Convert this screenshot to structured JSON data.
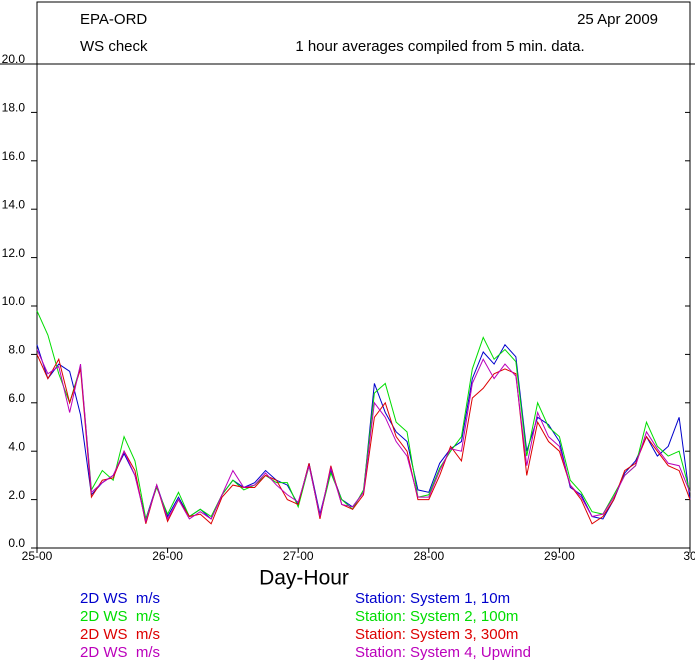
{
  "header": {
    "org": "EPA-ORD",
    "date": "25 Apr 2009"
  },
  "chart_data": {
    "type": "line",
    "title": "WS check",
    "subtitle": "1 hour averages compiled from 5 min. data.",
    "x_label": "Day-Hour",
    "x": [
      0,
      2,
      4,
      6,
      8,
      10,
      12,
      14,
      16,
      18,
      20,
      22,
      24,
      26,
      28,
      30,
      32,
      34,
      36,
      38,
      40,
      42,
      44,
      46,
      48,
      50,
      52,
      54,
      56,
      58,
      60,
      62,
      64,
      66,
      68,
      70,
      72,
      74,
      76,
      78,
      80,
      82,
      84,
      86,
      88,
      90,
      92,
      94,
      96,
      98,
      100,
      102,
      104,
      106,
      108,
      110,
      112,
      114,
      116,
      118,
      120
    ],
    "xlim": [
      0,
      120
    ],
    "xticks": [
      {
        "value": 0,
        "label": "25-00"
      },
      {
        "value": 24,
        "label": "26-00"
      },
      {
        "value": 48,
        "label": "27-00"
      },
      {
        "value": 72,
        "label": "28-00"
      },
      {
        "value": 96,
        "label": "29-00"
      },
      {
        "value": 120,
        "label": "30"
      }
    ],
    "ylim": [
      0,
      20
    ],
    "yticks": [
      {
        "value": 0,
        "label": "0.0"
      },
      {
        "value": 2,
        "label": "2.0"
      },
      {
        "value": 4,
        "label": "4.0"
      },
      {
        "value": 6,
        "label": "6.0"
      },
      {
        "value": 8,
        "label": "8.0"
      },
      {
        "value": 10,
        "label": "10.0"
      },
      {
        "value": 12,
        "label": "12.0"
      },
      {
        "value": 14,
        "label": "14.0"
      },
      {
        "value": 16,
        "label": "16.0"
      },
      {
        "value": 18,
        "label": "18.0"
      },
      {
        "value": 20,
        "label": "20.0"
      }
    ],
    "series": [
      {
        "name": "Station: System 1, 10m",
        "label": "2D WS  m/s",
        "color": "#0000cc",
        "values": [
          8.4,
          7.0,
          7.6,
          7.3,
          5.5,
          2.2,
          2.7,
          3.0,
          3.9,
          3.0,
          1.2,
          2.6,
          1.3,
          2.1,
          1.3,
          1.6,
          1.2,
          2.2,
          2.8,
          2.5,
          2.7,
          3.2,
          2.8,
          2.6,
          1.8,
          3.5,
          1.4,
          3.2,
          2.0,
          1.7,
          2.3,
          6.8,
          5.6,
          4.8,
          4.4,
          2.4,
          2.3,
          3.5,
          4.1,
          4.4,
          7.0,
          8.1,
          7.6,
          8.4,
          7.9,
          4.0,
          5.4,
          5.1,
          4.4,
          2.5,
          2.2,
          1.3,
          1.2,
          2.0,
          3.1,
          3.6,
          4.6,
          3.8,
          4.2,
          5.4,
          2.0
        ]
      },
      {
        "name": "Station: System 2, 100m",
        "label": "2D WS  m/s",
        "color": "#00dd00",
        "values": [
          9.8,
          8.8,
          7.2,
          6.0,
          7.5,
          2.4,
          3.2,
          2.8,
          4.6,
          3.6,
          1.2,
          2.5,
          1.4,
          2.3,
          1.3,
          1.6,
          1.3,
          2.2,
          2.8,
          2.4,
          2.6,
          3.0,
          2.7,
          2.7,
          1.7,
          3.4,
          1.3,
          3.1,
          2.0,
          1.6,
          2.4,
          6.4,
          6.8,
          5.2,
          4.8,
          2.1,
          2.2,
          3.3,
          4.0,
          4.6,
          7.4,
          8.7,
          7.8,
          8.2,
          7.7,
          3.8,
          6.0,
          5.0,
          4.6,
          2.8,
          2.3,
          1.5,
          1.4,
          2.2,
          3.0,
          3.4,
          5.2,
          4.2,
          3.8,
          4.0,
          2.3
        ]
      },
      {
        "name": "Station: System 3, 300m",
        "label": "2D WS  m/s",
        "color": "#dd0000",
        "values": [
          8.0,
          7.0,
          7.8,
          6.0,
          7.4,
          2.1,
          2.8,
          2.9,
          4.0,
          3.2,
          1.0,
          2.6,
          1.1,
          2.0,
          1.3,
          1.4,
          1.0,
          2.1,
          2.6,
          2.5,
          2.5,
          3.0,
          2.8,
          2.0,
          1.8,
          3.5,
          1.2,
          3.4,
          1.8,
          1.6,
          2.2,
          5.4,
          6.0,
          4.6,
          4.0,
          2.0,
          2.0,
          3.0,
          4.2,
          3.6,
          6.2,
          6.6,
          7.2,
          7.4,
          7.2,
          3.0,
          5.2,
          4.4,
          4.0,
          2.6,
          2.0,
          1.0,
          1.3,
          2.0,
          3.2,
          3.5,
          4.6,
          4.0,
          3.4,
          3.2,
          2.0
        ]
      },
      {
        "name": "Station: System 4, Upwind",
        "label": "2D WS  m/s",
        "color": "#bb00bb",
        "values": [
          8.2,
          7.2,
          7.5,
          5.6,
          7.6,
          2.3,
          2.7,
          3.0,
          4.0,
          3.0,
          1.1,
          2.6,
          1.2,
          2.0,
          1.2,
          1.5,
          1.2,
          2.2,
          3.2,
          2.5,
          2.6,
          3.1,
          2.6,
          2.2,
          1.9,
          3.4,
          1.3,
          3.3,
          1.8,
          1.7,
          2.3,
          6.0,
          5.4,
          4.4,
          3.8,
          2.1,
          2.1,
          3.2,
          4.1,
          4.0,
          6.8,
          7.8,
          7.0,
          7.6,
          7.1,
          3.4,
          5.6,
          4.6,
          4.2,
          2.6,
          2.1,
          1.3,
          1.4,
          2.1,
          3.0,
          3.4,
          4.8,
          4.1,
          3.5,
          3.4,
          2.3
        ]
      }
    ]
  }
}
